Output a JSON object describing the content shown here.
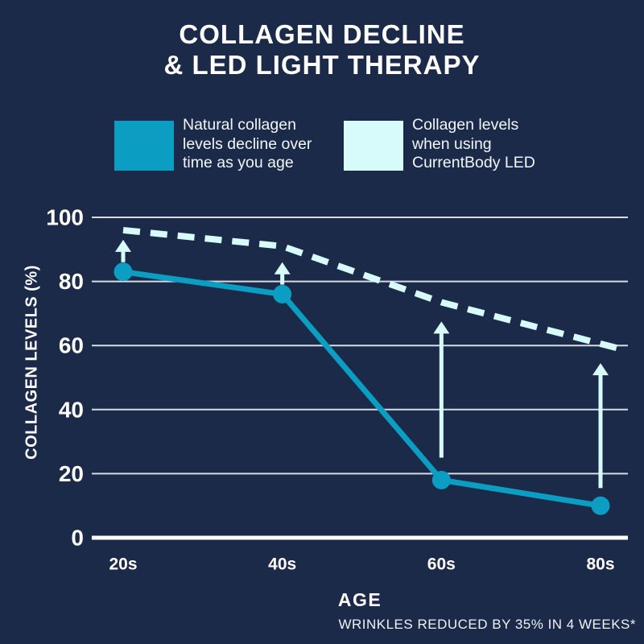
{
  "title": {
    "line1": "COLLAGEN DECLINE",
    "line2": "& LED LIGHT THERAPY"
  },
  "legend": {
    "natural": {
      "label": "Natural collagen levels decline over time as you age",
      "color": "#0b9dc2",
      "lines": [
        "Natural collagen",
        "levels decline over",
        "time as you age"
      ]
    },
    "led": {
      "label": "Collagen levels when using CurrentBody LED",
      "color": "#d6fbfa",
      "lines": [
        "Collagen levels",
        "when using",
        "CurrentBody LED"
      ]
    }
  },
  "chart_data": {
    "type": "line",
    "title": "COLLAGEN DECLINE & LED LIGHT THERAPY",
    "categories": [
      "20s",
      "40s",
      "60s",
      "80s"
    ],
    "series": [
      {
        "name": "Natural collagen levels decline over time as you age",
        "style": "solid",
        "color": "#0b9dc2",
        "markers": true,
        "values": [
          83,
          76,
          18,
          10
        ],
        "x_positions": [
          0,
          1,
          2,
          3
        ]
      },
      {
        "name": "Collagen levels when using CurrentBody LED",
        "style": "dashed",
        "color": "#d6fbfa",
        "markers": false,
        "values": [
          96,
          91,
          73.5,
          59
        ],
        "x_positions": [
          0,
          1,
          2,
          3.12
        ]
      }
    ],
    "improvement_arrows": [
      {
        "category": "20s",
        "x_position": 0,
        "from": 86,
        "to": 93
      },
      {
        "category": "40s",
        "x_position": 1,
        "from": 79,
        "to": 86
      },
      {
        "category": "60s",
        "x_position": 2,
        "from": 25,
        "to": 67.5
      },
      {
        "category": "80s",
        "x_position": 3,
        "from": 15.5,
        "to": 54.5
      }
    ],
    "xlabel": "AGE",
    "ylabel": "COLLAGEN LEVELS (%)",
    "ylim": [
      0,
      100
    ],
    "yticks": [
      0,
      20,
      40,
      60,
      80,
      100
    ],
    "grid": true,
    "legend_position": "top",
    "gridline_color": "#d8dbe0",
    "baseline_color": "#ffffff",
    "tick_text_color": "#ffffff"
  },
  "colors": {
    "background": "#1c2a49",
    "text": "#ffffff"
  },
  "footer": {
    "note": "WRINKLES REDUCED BY 35% IN 4 WEEKS*"
  }
}
